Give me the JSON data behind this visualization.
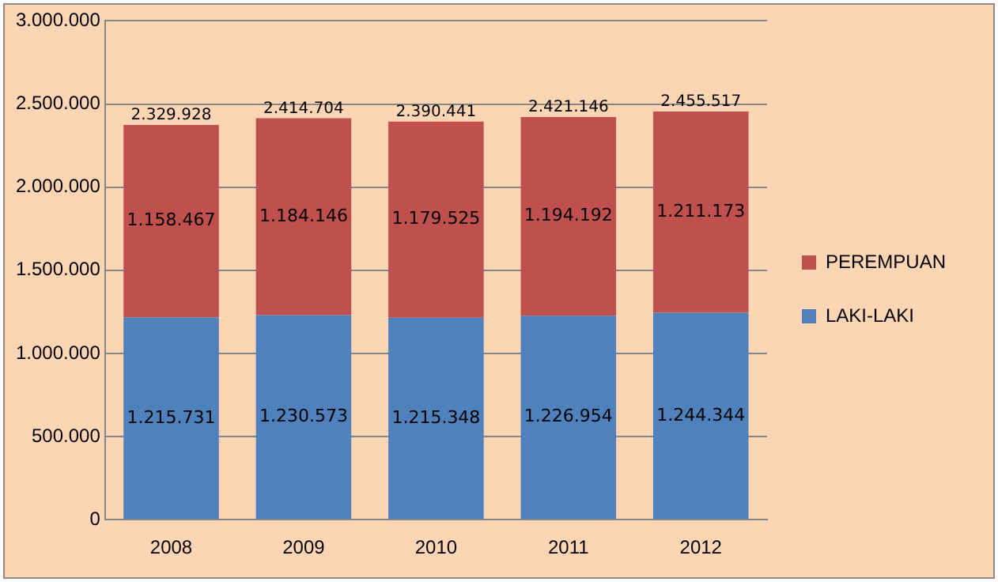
{
  "chart_data": {
    "type": "bar",
    "stacked": true,
    "categories": [
      "2008",
      "2009",
      "2010",
      "2011",
      "2012"
    ],
    "series": [
      {
        "name": "LAKI-LAKI",
        "color": "#4f81bd",
        "values": [
          1215731,
          1230573,
          1215348,
          1226954,
          1244344
        ],
        "value_labels": [
          "1.215.731",
          "1.230.573",
          "1.215.348",
          "1.226.954",
          "1.244.344"
        ]
      },
      {
        "name": "PEREMPUAN",
        "color": "#c0504d",
        "values": [
          1158467,
          1184146,
          1179525,
          1194192,
          1211173
        ],
        "value_labels": [
          "1.158.467",
          "1.184.146",
          "1.179.525",
          "1.194.192",
          "1.211.173"
        ]
      }
    ],
    "annotations": [
      {
        "text": "2.329.928",
        "x": "2008",
        "y": 2374198
      },
      {
        "text": "2.414.704",
        "x": "2009",
        "y": 2414719
      },
      {
        "text": "2.390.441",
        "x": "2010",
        "y": 2394873
      },
      {
        "text": "2.421.146",
        "x": "2011",
        "y": 2421146
      },
      {
        "text": "2.455.517",
        "x": "2012",
        "y": 2455517
      }
    ],
    "ylim": [
      0,
      3000000
    ],
    "yticks": [
      {
        "value": 0,
        "label": "0"
      },
      {
        "value": 500000,
        "label": "500.000"
      },
      {
        "value": 1000000,
        "label": "1.000.000"
      },
      {
        "value": 1500000,
        "label": "1.500.000"
      },
      {
        "value": 2000000,
        "label": "2.000.000"
      },
      {
        "value": 2500000,
        "label": "2.500.000"
      },
      {
        "value": 3000000,
        "label": "3.000.000"
      }
    ],
    "grid": "y",
    "legend": "right"
  }
}
